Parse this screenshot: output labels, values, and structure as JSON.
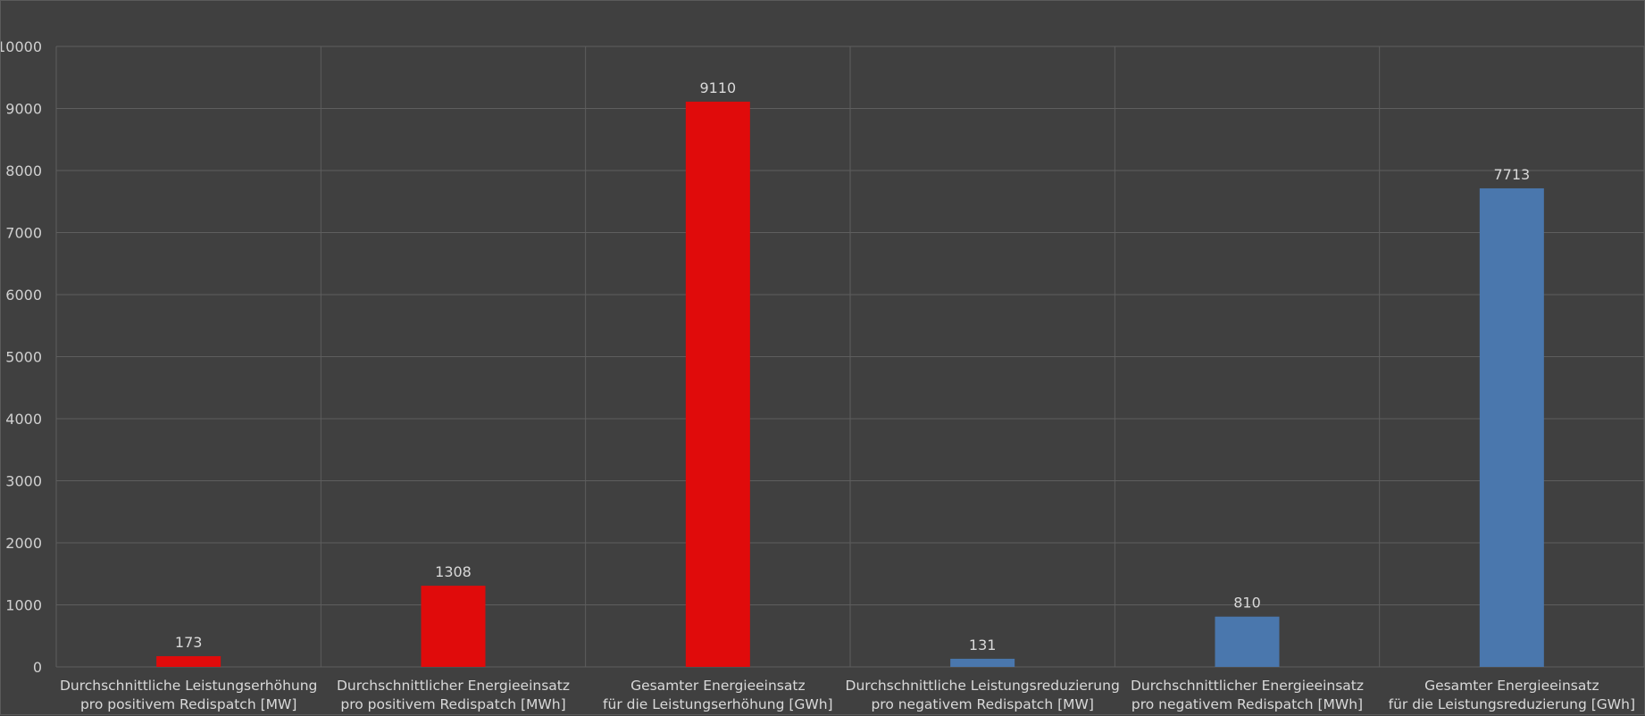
{
  "chart_data": {
    "type": "bar",
    "categories": [
      [
        "Durchschnittliche Leistungserhöhung",
        "pro positivem Redispatch [MW]"
      ],
      [
        "Durchschnittlicher Energieeinsatz",
        "pro positivem Redispatch [MWh]"
      ],
      [
        "Gesamter Energieeinsatz",
        "für die Leistungserhöhung [GWh]"
      ],
      [
        "Durchschnittliche Leistungsreduzierung",
        "pro negativem Redispatch [MW]"
      ],
      [
        "Durchschnittlicher Energieeinsatz",
        "pro negativem Redispatch [MWh]"
      ],
      [
        "Gesamter Energieeinsatz",
        "für die Leistungsreduzierung [GWh]"
      ]
    ],
    "values": [
      173,
      1308,
      9110,
      131,
      810,
      7713
    ],
    "data_labels": [
      "173",
      "1308",
      "9110",
      "131",
      "810",
      "7713"
    ],
    "bar_colors": [
      "#e00b0b",
      "#e00b0b",
      "#e00b0b",
      "#4a77ad",
      "#4a77ad",
      "#4a77ad"
    ],
    "ylim": [
      0,
      10000
    ],
    "yticks": [
      "0",
      "1000",
      "2000",
      "3000",
      "4000",
      "5000",
      "6000",
      "7000",
      "8000",
      "9000",
      "10000"
    ],
    "grid": true,
    "legend": "none",
    "title": "",
    "xlabel": "",
    "ylabel": "",
    "colors": {
      "background": "#404040",
      "grid": "#5e5e5e",
      "text": "#d9d9d9"
    }
  }
}
